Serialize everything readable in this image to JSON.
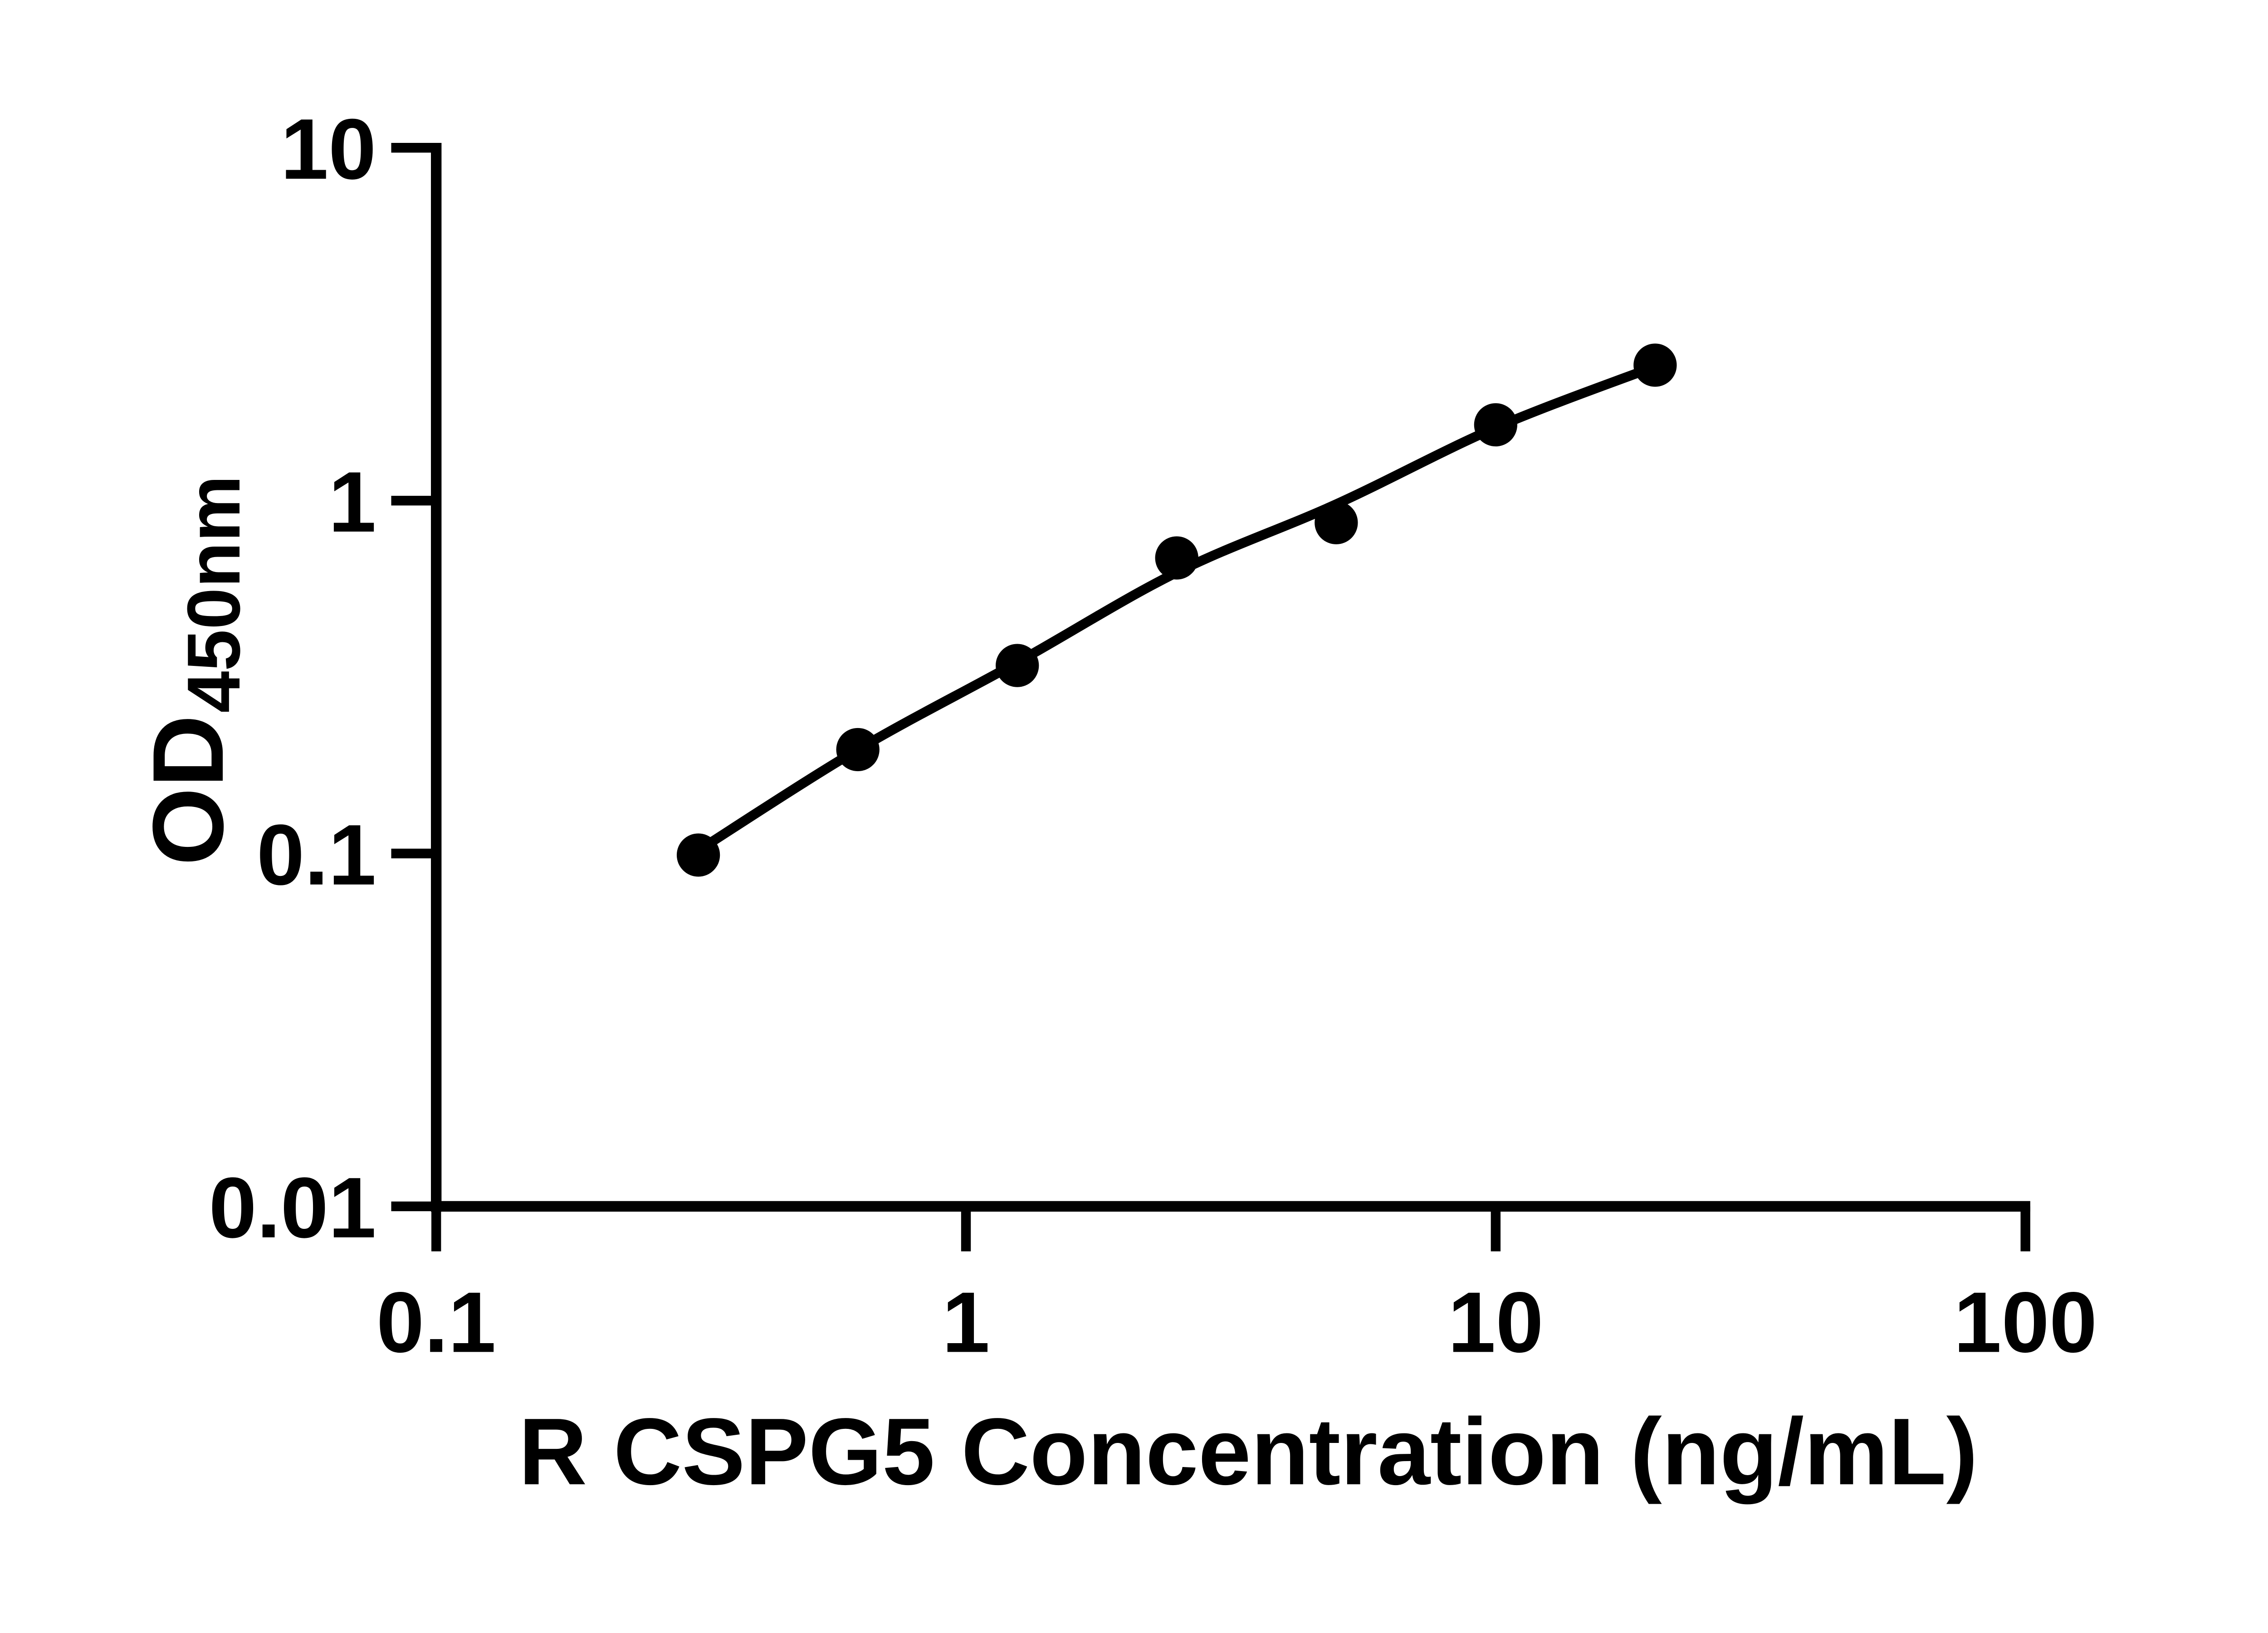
{
  "figure": {
    "background_color": "#ffffff",
    "ink_color": "#000000"
  },
  "chart_data": {
    "type": "scatter",
    "title": "",
    "xlabel": "R CSPG5 Concentration (ng/mL)",
    "ylabel_main": "OD",
    "ylabel_sub": "450nm",
    "x_scale": "log",
    "y_scale": "log",
    "xlim": [
      0.1,
      100
    ],
    "ylim": [
      0.01,
      10
    ],
    "grid": false,
    "legend": "none",
    "x_ticks": [
      {
        "value": 0.1,
        "label": "0.1"
      },
      {
        "value": 1,
        "label": "1"
      },
      {
        "value": 10,
        "label": "10"
      },
      {
        "value": 100,
        "label": "100"
      }
    ],
    "y_ticks": [
      {
        "value": 10,
        "label": "10"
      },
      {
        "value": 1,
        "label": "1"
      },
      {
        "value": 0.1,
        "label": "0.1"
      },
      {
        "value": 0.01,
        "label": "0.01"
      }
    ],
    "series": [
      {
        "name": "standard-points",
        "kind": "markers",
        "x": [
          0.3125,
          0.625,
          1.25,
          2.5,
          5,
          10,
          20
        ],
        "od": [
          0.099,
          0.197,
          0.341,
          0.688,
          0.866,
          1.64,
          2.42
        ]
      },
      {
        "name": "fitted-curve",
        "kind": "line",
        "x": [
          0.3125,
          0.625,
          1.25,
          2.5,
          5,
          10,
          20
        ],
        "od": [
          0.102,
          0.197,
          0.348,
          0.626,
          0.977,
          1.61,
          2.4
        ]
      }
    ]
  }
}
